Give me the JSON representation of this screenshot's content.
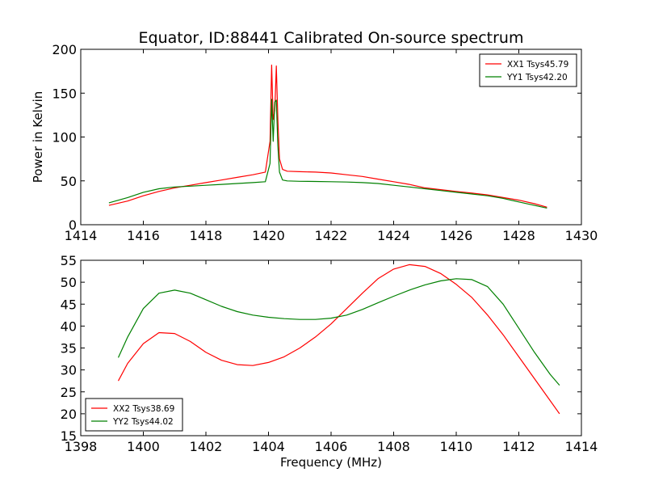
{
  "title": "Equator, ID:88441 Calibrated On-source spectrum",
  "colors": {
    "red": "#ff0000",
    "green": "#008000",
    "axis": "#000000"
  },
  "chart_data": [
    {
      "type": "line",
      "ylabel": "Power in Kelvin",
      "xlabel": "",
      "xlim": [
        1414,
        1430
      ],
      "ylim": [
        0,
        200
      ],
      "xticks": [
        1414,
        1416,
        1418,
        1420,
        1422,
        1424,
        1426,
        1428,
        1430
      ],
      "yticks": [
        0,
        50,
        100,
        150,
        200
      ],
      "legend": "top-right",
      "series": [
        {
          "name": "XX1 Tsys45.79",
          "color": "#ff0000",
          "x": [
            1414.9,
            1415.5,
            1416.0,
            1416.5,
            1417.0,
            1417.5,
            1418.0,
            1418.5,
            1419.0,
            1419.5,
            1419.9,
            1420.05,
            1420.1,
            1420.15,
            1420.2,
            1420.25,
            1420.3,
            1420.35,
            1420.45,
            1420.6,
            1421.0,
            1421.5,
            1422.0,
            1422.5,
            1423.0,
            1423.5,
            1424.0,
            1424.5,
            1425.0,
            1425.5,
            1426.0,
            1426.5,
            1427.0,
            1427.5,
            1428.0,
            1428.5,
            1428.9
          ],
          "y": [
            22,
            27,
            33,
            38,
            42,
            45,
            48,
            51,
            54,
            57,
            60,
            95,
            182,
            120,
            130,
            181,
            120,
            75,
            63,
            61,
            60.5,
            60,
            59,
            57,
            55,
            52,
            49,
            46,
            42,
            40,
            38,
            36,
            34,
            31,
            28,
            24,
            20
          ]
        },
        {
          "name": "YY1 Tsys42.20",
          "color": "#008000",
          "x": [
            1414.9,
            1415.5,
            1416.0,
            1416.5,
            1417.0,
            1417.5,
            1418.0,
            1418.5,
            1419.0,
            1419.5,
            1419.9,
            1420.05,
            1420.1,
            1420.15,
            1420.2,
            1420.25,
            1420.3,
            1420.35,
            1420.45,
            1420.6,
            1421.0,
            1421.5,
            1422.0,
            1422.5,
            1423.0,
            1423.5,
            1424.0,
            1424.5,
            1425.0,
            1425.5,
            1426.0,
            1426.5,
            1427.0,
            1427.5,
            1428.0,
            1428.5,
            1428.9
          ],
          "y": [
            25,
            31,
            37,
            41,
            43,
            44,
            45,
            46,
            47,
            48,
            49,
            70,
            143,
            95,
            140,
            142,
            90,
            60,
            51,
            50,
            49.5,
            49.3,
            49,
            48.7,
            48,
            47,
            45,
            43,
            41,
            39,
            37,
            35,
            33,
            30,
            26,
            22,
            19
          ]
        }
      ]
    },
    {
      "type": "line",
      "ylabel": "",
      "xlabel": "Frequency (MHz)",
      "xlim": [
        1398,
        1414
      ],
      "ylim": [
        15,
        55
      ],
      "xticks": [
        1398,
        1400,
        1402,
        1404,
        1406,
        1408,
        1410,
        1412,
        1414
      ],
      "yticks": [
        15,
        20,
        25,
        30,
        35,
        40,
        45,
        50,
        55
      ],
      "legend": "bottom-left",
      "series": [
        {
          "name": "XX2 Tsys38.69",
          "color": "#ff0000",
          "x": [
            1399.2,
            1399.5,
            1400.0,
            1400.5,
            1401.0,
            1401.5,
            1402.0,
            1402.5,
            1403.0,
            1403.5,
            1404.0,
            1404.5,
            1405.0,
            1405.5,
            1406.0,
            1406.5,
            1407.0,
            1407.5,
            1408.0,
            1408.5,
            1409.0,
            1409.5,
            1410.0,
            1410.5,
            1411.0,
            1411.5,
            1412.0,
            1412.5,
            1413.0,
            1413.3
          ],
          "y": [
            27.5,
            31.5,
            36,
            38.5,
            38.3,
            36.5,
            34,
            32.2,
            31.2,
            31,
            31.7,
            33,
            35,
            37.5,
            40.5,
            44,
            47.5,
            50.8,
            53,
            54,
            53.6,
            52,
            49.5,
            46.5,
            42.5,
            38,
            33,
            28,
            23,
            20
          ]
        },
        {
          "name": "YY2 Tsys44.02",
          "color": "#008000",
          "x": [
            1399.2,
            1399.5,
            1400.0,
            1400.5,
            1401.0,
            1401.5,
            1402.0,
            1402.5,
            1403.0,
            1403.5,
            1404.0,
            1404.5,
            1405.0,
            1405.5,
            1406.0,
            1406.5,
            1407.0,
            1407.5,
            1408.0,
            1408.5,
            1409.0,
            1409.5,
            1410.0,
            1410.5,
            1411.0,
            1411.5,
            1412.0,
            1412.5,
            1413.0,
            1413.3
          ],
          "y": [
            32.8,
            37.5,
            44,
            47.5,
            48.2,
            47.5,
            46,
            44.5,
            43.3,
            42.5,
            42,
            41.7,
            41.5,
            41.5,
            41.8,
            42.5,
            43.8,
            45.3,
            46.8,
            48.2,
            49.4,
            50.3,
            50.8,
            50.6,
            49,
            45,
            39.5,
            34,
            29,
            26.5
          ]
        }
      ]
    }
  ]
}
